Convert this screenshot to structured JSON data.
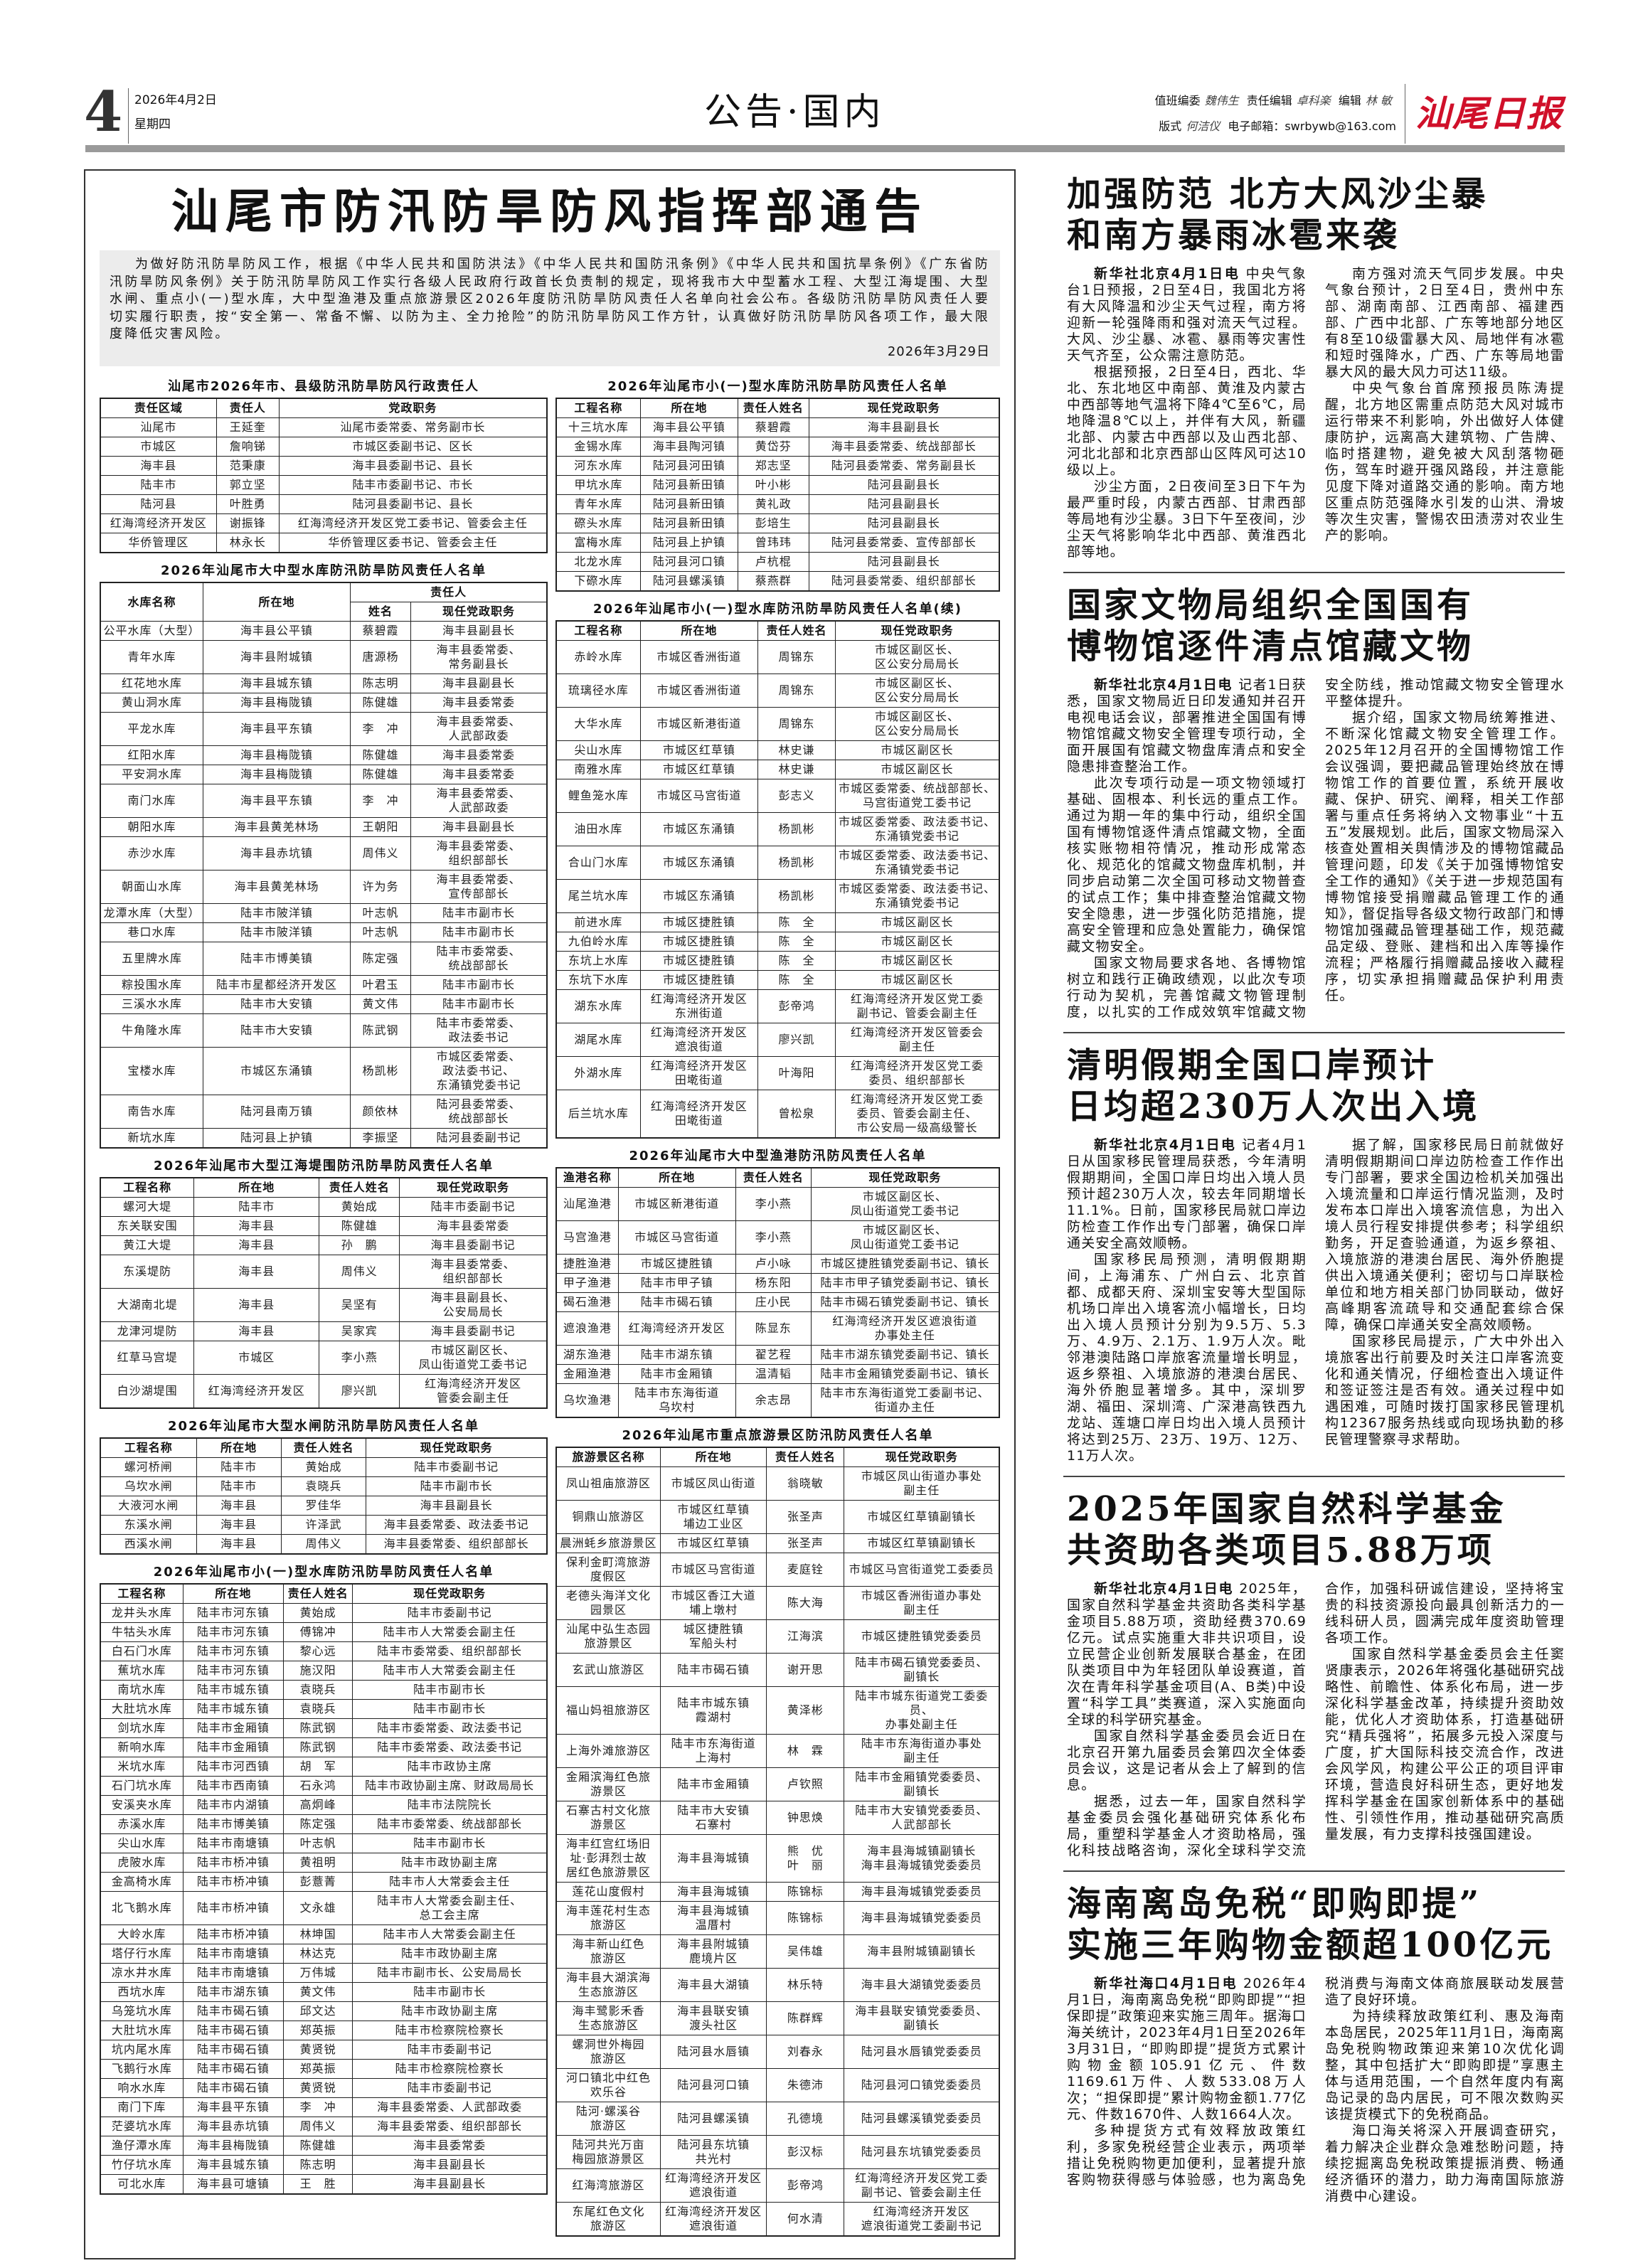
{
  "header": {
    "page_number": "4",
    "date": "2026年4月2日",
    "weekday": "星期四",
    "section": "公告·国内",
    "duty_editor_label": "值班编委",
    "duty_editor": "魏伟生",
    "chief_editor_label": "责任编辑",
    "chief_editor": "卓科楽",
    "editor_label": "编辑",
    "editor": "林 敏",
    "layout_label": "版式",
    "layout": "何洁仪",
    "email_label": "电子邮箱：",
    "email": "swrbywb@163.com",
    "logo": "汕尾日报",
    "logo_color": "#d0102a"
  },
  "notice": {
    "title": "汕尾市防汛防旱防风指挥部通告",
    "intro": "为做好防汛防旱防风工作，根据《中华人民共和国防洪法》《中华人民共和国防汛条例》《中华人民共和国抗旱条例》《广东省防汛防旱防风条例》关于防汛防旱防风工作实行各级人民政府行政首长负责制的规定，现将我市大中型蓄水工程、大型江海堤围、大型水闸、重点小(一)型水库，大中型渔港及重点旅游景区2026年度防汛防旱防风责任人名单向社会公布。各级防汛防旱防风责任人要切实履行职责，按“安全第一、常备不懈、以防为主、全力抢险”的防汛防旱防风工作方针，认真做好防汛防旱防风各项工作，最大限度降低灾害风险。",
    "date": "2026年3月29日"
  },
  "left_tables": [
    {
      "title": "汕尾市2026年市、县级防汛防旱防风行政责任人",
      "headers": [
        "责任区域",
        "责任人",
        "党政职务"
      ],
      "rows": [
        [
          "汕尾市",
          "王延奎",
          "汕尾市委常委、常务副市长"
        ],
        [
          "市城区",
          "詹响锑",
          "市城区委副书记、区长"
        ],
        [
          "海丰县",
          "范秉康",
          "海丰县委副书记、县长"
        ],
        [
          "陆丰市",
          "郭立坚",
          "陆丰市委副书记、市长"
        ],
        [
          "陆河县",
          "叶胜勇",
          "陆河县委副书记、县长"
        ],
        [
          "红海湾经济开发区",
          "谢振锋",
          "红海湾经济开发区党工委书记、管委会主任"
        ],
        [
          "华侨管理区",
          "林永长",
          "华侨管理区委书记、管委会主任"
        ]
      ]
    },
    {
      "title": "2026年汕尾市大中型水库防汛防旱防风责任人名单",
      "headers": [
        "水库名称",
        "所在地",
        "责任人",
        "姓名",
        "现任党政职务"
      ],
      "rows": [
        [
          "公平水库（大型）",
          "海丰县公平镇",
          "蔡碧霞",
          "海丰县副县长"
        ],
        [
          "青年水库",
          "海丰县附城镇",
          "唐源杨",
          "海丰县委常委、\n常务副县长"
        ],
        [
          "红花地水库",
          "海丰县城东镇",
          "陈志明",
          "海丰县副县长"
        ],
        [
          "黄山洞水库",
          "海丰县梅陇镇",
          "陈健雄",
          "海丰县委常委"
        ],
        [
          "平龙水库",
          "海丰县平东镇",
          "李　冲",
          "海丰县委常委、\n人武部政委"
        ],
        [
          "红阳水库",
          "海丰县梅陇镇",
          "陈健雄",
          "海丰县委常委"
        ],
        [
          "平安洞水库",
          "海丰县梅陇镇",
          "陈健雄",
          "海丰县委常委"
        ],
        [
          "南门水库",
          "海丰县平东镇",
          "李　冲",
          "海丰县委常委、\n人武部政委"
        ],
        [
          "朝阳水库",
          "海丰县黄羌林场",
          "王朝阳",
          "海丰县副县长"
        ],
        [
          "赤沙水库",
          "海丰县赤坑镇",
          "周伟义",
          "海丰县委常委、\n组织部部长"
        ],
        [
          "朝面山水库",
          "海丰县黄羌林场",
          "许为务",
          "海丰县委常委、\n宣传部部长"
        ],
        [
          "龙潭水库（大型）",
          "陆丰市陂洋镇",
          "叶志帆",
          "陆丰市副市长"
        ],
        [
          "巷口水库",
          "陆丰市陂洋镇",
          "叶志帆",
          "陆丰市副市长"
        ],
        [
          "五里牌水库",
          "陆丰市博美镇",
          "陈定强",
          "陆丰市委常委、\n统战部部长"
        ],
        [
          "粽投围水库",
          "陆丰市星都经济开发区",
          "叶君玉",
          "陆丰市副市长"
        ],
        [
          "三溪水水库",
          "陆丰市大安镇",
          "黄文伟",
          "陆丰市副市长"
        ],
        [
          "牛角隆水库",
          "陆丰市大安镇",
          "陈武钢",
          "陆丰市委常委、\n政法委书记"
        ],
        [
          "宝楼水库",
          "市城区东涌镇",
          "杨凯彬",
          "市城区委常委、\n政法委书记、\n东涌镇党委书记"
        ],
        [
          "南告水库",
          "陆河县南万镇",
          "颜依林",
          "陆河县委常委、\n统战部部长"
        ],
        [
          "新坑水库",
          "陆河县上护镇",
          "李振坚",
          "陆河县委副书记"
        ]
      ]
    },
    {
      "title": "2026年汕尾市大型江海堤围防汛防旱防风责任人名单",
      "headers": [
        "工程名称",
        "所在地",
        "责任人姓名",
        "现任党政职务"
      ],
      "rows": [
        [
          "螺河大堤",
          "陆丰市",
          "黄始成",
          "陆丰市委副书记"
        ],
        [
          "东关联安围",
          "海丰县",
          "陈健雄",
          "海丰县委常委"
        ],
        [
          "黄江大堤",
          "海丰县",
          "孙　鹏",
          "海丰县委副书记"
        ],
        [
          "东溪堤防",
          "海丰县",
          "周伟义",
          "海丰县委常委、\n组织部部长"
        ],
        [
          "大湖南北堤",
          "海丰县",
          "吴坚有",
          "海丰县副县长、\n公安局局长"
        ],
        [
          "龙津河堤防",
          "海丰县",
          "吴家宾",
          "海丰县委副书记"
        ],
        [
          "红草马宫堤",
          "市城区",
          "李小燕",
          "市城区副区长、\n凤山街道党工委书记"
        ],
        [
          "白沙湖堤围",
          "红海湾经济开发区",
          "廖兴凯",
          "红海湾经济开发区\n管委会副主任"
        ]
      ]
    },
    {
      "title": "2026年汕尾市大型水闸防汛防旱防风责任人名单",
      "headers": [
        "工程名称",
        "所在地",
        "责任人姓名",
        "现任党政职务"
      ],
      "rows": [
        [
          "螺河桥闸",
          "陆丰市",
          "黄始成",
          "陆丰市委副书记"
        ],
        [
          "乌坎水闸",
          "陆丰市",
          "袁晓兵",
          "陆丰市副市长"
        ],
        [
          "大液河水闸",
          "海丰县",
          "罗佳华",
          "海丰县副县长"
        ],
        [
          "东溪水闸",
          "海丰县",
          "许泽武",
          "海丰县委常委、政法委书记"
        ],
        [
          "西溪水闸",
          "海丰县",
          "周伟义",
          "海丰县委常委、组织部部长"
        ]
      ]
    },
    {
      "title": "2026年汕尾市小(一)型水库防汛防旱防风责任人名单",
      "headers": [
        "工程名称",
        "所在地",
        "责任人姓名",
        "现任党政职务"
      ],
      "rows": [
        [
          "龙井头水库",
          "陆丰市河东镇",
          "黄始成",
          "陆丰市委副书记"
        ],
        [
          "牛牯头水库",
          "陆丰市河东镇",
          "傅锦冲",
          "陆丰市人大常委会副主任"
        ],
        [
          "白石门水库",
          "陆丰市河东镇",
          "黎心远",
          "陆丰市委常委、组织部部长"
        ],
        [
          "蕉坑水库",
          "陆丰市河东镇",
          "施汉阳",
          "陆丰市人大常委会副主任"
        ],
        [
          "南坑水库",
          "陆丰市城东镇",
          "袁晓兵",
          "陆丰市副市长"
        ],
        [
          "大肚坑水库",
          "陆丰市城东镇",
          "袁晓兵",
          "陆丰市副市长"
        ],
        [
          "剑坑水库",
          "陆丰市金厢镇",
          "陈武钢",
          "陆丰市委常委、政法委书记"
        ],
        [
          "新响水库",
          "陆丰市金厢镇",
          "陈武钢",
          "陆丰市委常委、政法委书记"
        ],
        [
          "米坑水库",
          "陆丰市河西镇",
          "胡　军",
          "陆丰市政协主席"
        ],
        [
          "石门坑水库",
          "陆丰市西南镇",
          "石永鸿",
          "陆丰市政协副主席、财政局局长"
        ],
        [
          "安溪夹水库",
          "陆丰市内湖镇",
          "高炯峰",
          "陆丰市法院院长"
        ],
        [
          "赤溪水库",
          "陆丰市博美镇",
          "陈定强",
          "陆丰市委常委、统战部部长"
        ],
        [
          "尖山水库",
          "陆丰市南塘镇",
          "叶志帆",
          "陆丰市副市长"
        ],
        [
          "虎陂水库",
          "陆丰市桥冲镇",
          "黄祖明",
          "陆丰市政协副主席"
        ],
        [
          "金高椅水库",
          "陆丰市桥冲镇",
          "彭薏菁",
          "陆丰市人大常委会主任"
        ],
        [
          "北飞鹅水库",
          "陆丰市桥冲镇",
          "文永雄",
          "陆丰市人大常委会副主任、\n总工会主席"
        ],
        [
          "大岭水库",
          "陆丰市桥冲镇",
          "林坤国",
          "陆丰市人大常委会副主任"
        ],
        [
          "塔仔行水库",
          "陆丰市南塘镇",
          "林达克",
          "陆丰市政协副主席"
        ],
        [
          "凉水井水库",
          "陆丰市南塘镇",
          "万伟城",
          "陆丰市副市长、公安局局长"
        ],
        [
          "西坑水库",
          "陆丰市湖东镇",
          "黄文伟",
          "陆丰市副市长"
        ],
        [
          "乌笼坑水库",
          "陆丰市碣石镇",
          "邱文达",
          "陆丰市政协副主席"
        ],
        [
          "大肚坑水库",
          "陆丰市碣石镇",
          "郑英振",
          "陆丰市检察院检察长"
        ],
        [
          "坑内尾水库",
          "陆丰市碣石镇",
          "黄贤锐",
          "陆丰市委副书记"
        ],
        [
          "飞鹅行水库",
          "陆丰市碣石镇",
          "郑英振",
          "陆丰市检察院检察长"
        ],
        [
          "响水水库",
          "陆丰市碣石镇",
          "黄贤锐",
          "陆丰市委副书记"
        ],
        [
          "南门下库",
          "海丰县平东镇",
          "李　冲",
          "海丰县委常委、人武部政委"
        ],
        [
          "茫婆坑水库",
          "海丰县赤坑镇",
          "周伟义",
          "海丰县委常委、组织部部长"
        ],
        [
          "渔仔潭水库",
          "海丰县梅陇镇",
          "陈健雄",
          "海丰县委常委"
        ],
        [
          "竹仔坑水库",
          "海丰县城东镇",
          "陈志明",
          "海丰县副县长"
        ],
        [
          "可北水库",
          "海丰县可塘镇",
          "王　胜",
          "海丰县副县长"
        ]
      ]
    }
  ],
  "right_tables": [
    {
      "title": "2026年汕尾市小(一)型水库防汛防旱防风责任人名单",
      "headers": [
        "工程名称",
        "所在地",
        "责任人姓名",
        "现任党政职务"
      ],
      "rows": [
        [
          "十三坑水库",
          "海丰县公平镇",
          "蔡碧霞",
          "海丰县副县长"
        ],
        [
          "金锡水库",
          "海丰县陶河镇",
          "黄岱芬",
          "海丰县委常委、统战部部长"
        ],
        [
          "河东水库",
          "陆河县河田镇",
          "郑志坚",
          "陆河县委常委、常务副县长"
        ],
        [
          "甲坑水库",
          "陆河县新田镇",
          "叶小彬",
          "陆河县副县长"
        ],
        [
          "青年水库",
          "陆河县新田镇",
          "黄礼政",
          "陆河县副县长"
        ],
        [
          "磜头水库",
          "陆河县新田镇",
          "彭培生",
          "陆河县副县长"
        ],
        [
          "富梅水库",
          "陆河县上护镇",
          "曾玮玮",
          "陆河县委常委、宣传部部长"
        ],
        [
          "北龙水库",
          "陆河县河口镇",
          "卢杭棍",
          "陆河县副县长"
        ],
        [
          "下磜水库",
          "陆河县螺溪镇",
          "蔡燕群",
          "陆河县委常委、组织部部长"
        ]
      ]
    },
    {
      "title": "2026年汕尾市小(一)型水库防汛防旱防风责任人名单(续)",
      "headers": [
        "工程名称",
        "所在地",
        "责任人姓名",
        "现任党政职务"
      ],
      "rows": [
        [
          "赤岭水库",
          "市城区香洲街道",
          "周锦东",
          "市城区副区长、\n区公安分局局长"
        ],
        [
          "琉璃径水库",
          "市城区香洲街道",
          "周锦东",
          "市城区副区长、\n区公安分局局长"
        ],
        [
          "大华水库",
          "市城区新港街道",
          "周锦东",
          "市城区副区长、\n区公安分局局长"
        ],
        [
          "尖山水库",
          "市城区红草镇",
          "林史谦",
          "市城区副区长"
        ],
        [
          "南雅水库",
          "市城区红草镇",
          "林史谦",
          "市城区副区长"
        ],
        [
          "鲤鱼笼水库",
          "市城区马宫街道",
          "彭志义",
          "市城区委常委、统战部部长、\n马宫街道党工委书记"
        ],
        [
          "油田水库",
          "市城区东涌镇",
          "杨凯彬",
          "市城区委常委、政法委书记、\n东涌镇党委书记"
        ],
        [
          "合山门水库",
          "市城区东涌镇",
          "杨凯彬",
          "市城区委常委、政法委书记、\n东涌镇党委书记"
        ],
        [
          "尾兰坑水库",
          "市城区东涌镇",
          "杨凯彬",
          "市城区委常委、政法委书记、\n东涌镇党委书记"
        ],
        [
          "前进水库",
          "市城区捷胜镇",
          "陈　全",
          "市城区副区长"
        ],
        [
          "九伯岭水库",
          "市城区捷胜镇",
          "陈　全",
          "市城区副区长"
        ],
        [
          "东坑上水库",
          "市城区捷胜镇",
          "陈　全",
          "市城区副区长"
        ],
        [
          "东坑下水库",
          "市城区捷胜镇",
          "陈　全",
          "市城区副区长"
        ],
        [
          "湖东水库",
          "红海湾经济开发区\n东洲街道",
          "彭帝鸿",
          "红海湾经济开发区党工委\n副书记、管委会副主任"
        ],
        [
          "湖尾水库",
          "红海湾经济开发区\n遮浪街道",
          "廖兴凯",
          "红海湾经济开发区管委会\n副主任"
        ],
        [
          "外湖水库",
          "红海湾经济开发区\n田墘街道",
          "叶海阳",
          "红海湾经济开发区党工委\n委员、组织部部长"
        ],
        [
          "后兰坑水库",
          "红海湾经济开发区\n田墘街道",
          "曾松泉",
          "红海湾经济开发区党工委\n委员、管委会副主任、\n市公安局一级高级警长"
        ]
      ]
    },
    {
      "title": "2026年汕尾市大中型渔港防汛防风责任人名单",
      "headers": [
        "渔港名称",
        "所在地",
        "责任人姓名",
        "现任党政职务"
      ],
      "rows": [
        [
          "汕尾渔港",
          "市城区新港街道",
          "李小燕",
          "市城区副区长、\n凤山街道党工委书记"
        ],
        [
          "马宫渔港",
          "市城区马宫街道",
          "李小燕",
          "市城区副区长、\n凤山街道党工委书记"
        ],
        [
          "捷胜渔港",
          "市城区捷胜镇",
          "卢小咏",
          "市城区捷胜镇党委副书记、镇长"
        ],
        [
          "甲子渔港",
          "陆丰市甲子镇",
          "杨东阳",
          "陆丰市甲子镇党委副书记、镇长"
        ],
        [
          "碣石渔港",
          "陆丰市碣石镇",
          "庄小民",
          "陆丰市碣石镇党委副书记、镇长"
        ],
        [
          "遮浪渔港",
          "红海湾经济开发区",
          "陈显东",
          "红海湾经济开发区遮浪街道\n办事处主任"
        ],
        [
          "湖东渔港",
          "陆丰市湖东镇",
          "翟艺程",
          "陆丰市湖东镇党委副书记、镇长"
        ],
        [
          "金厢渔港",
          "陆丰市金厢镇",
          "温清韬",
          "陆丰市金厢镇党委副书记、镇长"
        ],
        [
          "乌坎渔港",
          "陆丰市东海街道\n乌坎村",
          "余志昂",
          "陆丰市东海街道党工委副书记、\n街道办主任"
        ]
      ]
    },
    {
      "title": "2026年汕尾市重点旅游景区防汛防风责任人名单",
      "headers": [
        "旅游景区名称",
        "所在地",
        "责任人姓名",
        "现任党政职务"
      ],
      "rows": [
        [
          "凤山祖庙旅游区",
          "市城区凤山街道",
          "翁晓敏",
          "市城区凤山街道办事处\n副主任"
        ],
        [
          "铜鼎山旅游区",
          "市城区红草镇\n埔边工业区",
          "张圣声",
          "市城区红草镇副镇长"
        ],
        [
          "晨洲蚝乡旅游景区",
          "市城区红草镇",
          "张圣声",
          "市城区红草镇副镇长"
        ],
        [
          "保利金町湾旅游\n度假区",
          "市城区马宫街道",
          "麦庭铨",
          "市城区马宫街道党工委委员"
        ],
        [
          "老德头海洋文化\n园景区",
          "市城区香江大道\n埔上墩村",
          "陈大海",
          "市城区香洲街道办事处\n副主任"
        ],
        [
          "汕尾中弘生态园\n旅游景区",
          "城区捷胜镇\n军船头村",
          "江海滨",
          "市城区捷胜镇党委委员"
        ],
        [
          "玄武山旅游区",
          "陆丰市碣石镇",
          "谢开思",
          "陆丰市碣石镇党委委员、\n副镇长"
        ],
        [
          "福山妈祖旅游区",
          "陆丰市城东镇\n霞湖村",
          "黄泽彬",
          "陆丰市城东街道党工委委员、\n办事处副主任"
        ],
        [
          "上海外滩旅游区",
          "陆丰市东海街道\n上海村",
          "林　霖",
          "陆丰市东海街道办事处\n副主任"
        ],
        [
          "金厢滨海红色旅\n游景区",
          "陆丰市金厢镇",
          "卢钦照",
          "陆丰市金厢镇党委委员、\n副镇长"
        ],
        [
          "石寨古村文化旅\n游景区",
          "陆丰市大安镇\n石寨村",
          "钟思焕",
          "陆丰市大安镇党委委员、\n人武部部长"
        ],
        [
          "海丰红宫红场旧\n址·彭湃烈士故\n居红色旅游景区",
          "海丰县海城镇",
          "熊　优\n叶　丽",
          "海丰县海城镇副镇长\n海丰县海城镇党委委员"
        ],
        [
          "莲花山度假村",
          "海丰县海城镇",
          "陈锦标",
          "海丰县海城镇党委委员"
        ],
        [
          "海丰莲花村生态\n旅游区",
          "海丰县海城镇\n温厝村",
          "陈锦标",
          "海丰县海城镇党委委员"
        ],
        [
          "海丰新山红色\n旅游区",
          "海丰县附城镇\n鹿境片区",
          "吴伟雄",
          "海丰县附城镇副镇长"
        ],
        [
          "海丰县大湖滨海\n生态旅游区",
          "海丰县大湖镇",
          "林乐特",
          "海丰县大湖镇党委委员"
        ],
        [
          "海丰鹭影禾香\n生态旅游区",
          "海丰县联安镇\n渡头社区",
          "陈群辉",
          "海丰县联安镇党委委员、\n副镇长"
        ],
        [
          "螺洞世外梅园\n旅游区",
          "陆河县水唇镇",
          "刘春永",
          "陆河县水唇镇党委委员"
        ],
        [
          "河口镇北中红色\n欢乐谷",
          "陆河县河口镇",
          "朱德沛",
          "陆河县河口镇党委委员"
        ],
        [
          "陆河·螺溪谷\n旅游区",
          "陆河县螺溪镇",
          "孔德境",
          "陆河县螺溪镇党委委员"
        ],
        [
          "陆河共光万亩\n梅园旅游景区",
          "陆河县东坑镇\n共光村",
          "彭汉标",
          "陆河县东坑镇党委委员"
        ],
        [
          "红海湾旅游区",
          "红海湾经济开发区\n遮浪街道",
          "彭帝鸿",
          "红海湾经济开发区党工委\n副书记、管委会副主任"
        ],
        [
          "东尾红色文化\n旅游区",
          "红海湾经济开发区\n遮浪街道",
          "何水清",
          "红海湾经济开发区\n遮浪街道党工委副书记"
        ]
      ]
    }
  ],
  "articles": [
    {
      "headline": "加强防范  北方大风沙尘暴\n和南方暴雨冰雹来袭",
      "dateline": "新华社北京4月1日电",
      "paragraphs": [
        "中央气象台1日预报，2日至4日，我国北方将有大风降温和沙尘天气过程，南方将迎新一轮强降雨和强对流天气过程。大风、沙尘暴、冰雹、暴雨等灾害性天气齐至，公众需注意防范。",
        "根据预报，2日至4日，西北、华北、东北地区中南部、黄淮及内蒙古中西部等地气温将下降4℃至6℃，局地降温8℃以上，并伴有大风，新疆北部、内蒙古中西部以及山西北部、河北北部和北京西部山区阵风可达10级以上。",
        "沙尘方面，2日夜间至3日下午为最严重时段，内蒙古西部、甘肃西部等局地有沙尘暴。3日下午至夜间，沙尘天气将影响华北中西部、黄淮西北部等地。",
        "南方强对流天气同步发展。中央气象台预计，2日至4日，贵州中东部、湖南南部、江西南部、福建西部、广西中北部、广东等地部分地区有8至10级雷暴大风、局地伴有冰雹和短时强降水，广西、广东等局地雷暴大风的最大风力可达11级。",
        "中央气象台首席预报员陈涛提醒，北方地区需重点防范大风对城市运行带来不利影响，外出做好人体健康防护，远离高大建筑物、广告牌、临时搭建物，避免被大风刮落物砸伤，驾车时避开强风路段，并注意能见度下降对道路交通的影响。南方地区重点防范强降水引发的山洪、滑坡等次生灾害，警惕农田渍涝对农业生产的影响。"
      ]
    },
    {
      "headline": "国家文物局组织全国国有\n博物馆逐件清点馆藏文物",
      "dateline": "新华社北京4月1日电",
      "paragraphs": [
        "记者1日获悉，国家文物局近日印发通知并召开电视电话会议，部署推进全国国有博物馆馆藏文物安全管理专项行动，全面开展国有馆藏文物盘库清点和安全隐患排查整治工作。",
        "此次专项行动是一项文物领域打基础、固根本、利长远的重点工作。通过为期一年的集中行动，组织全国国有博物馆逐件清点馆藏文物，全面核实账物相符情况，推动形成常态化、规范化的馆藏文物盘库机制，并同步启动第二次全国可移动文物普查的试点工作；集中排查整治馆藏文物安全隐患，进一步强化防范措施，提高安全管理和应急处置能力，确保馆藏文物安全。",
        "国家文物局要求各地、各博物馆树立和践行正确政绩观，以此次专项行动为契机，完善馆藏文物管理制度，以扎实的工作成效筑牢馆藏文物安全防线，推动馆藏文物安全管理水平整体提升。",
        "据介绍，国家文物局统筹推进、不断深化馆藏文物安全管理工作。2025年12月召开的全国博物馆工作会议强调，要把藏品管理始终放在博物馆工作的首要位置，系统开展收藏、保护、研究、阐释，相关工作部署与重点任务将纳入文物事业“十五五”发展规划。此后，国家文物局深入核查处置相关舆情涉及的博物馆藏品管理问题，印发《关于加强博物馆安全工作的通知》《关于进一步规范国有博物馆接受捐赠藏品管理工作的通知》，督促指导各级文物行政部门和博物馆加强藏品管理基础工作，规范藏品定级、登账、建档和出入库等操作流程；严格履行捐赠藏品接收入藏程序，切实承担捐赠藏品保护利用责任。"
      ]
    },
    {
      "headline": "清明假期全国口岸预计\n日均超230万人次出入境",
      "dateline": "新华社北京4月1日电",
      "paragraphs": [
        "记者4月1日从国家移民管理局获悉，今年清明假期期间，全国口岸日均出入境人员预计超230万人次，较去年同期增长11.1%。日前，国家移民局就口岸边防检查工作作出专门部署，确保口岸通关安全高效顺畅。",
        "国家移民局预测，清明假期期间，上海浦东、广州白云、北京首都、成都天府、深圳宝安等大型国际机场口岸出入境客流小幅增长，日均出入境人员预计分别为9.5万、5.3万、4.9万、2.1万、1.9万人次。毗邻港澳陆路口岸旅客流量增长明显，返乡祭祖、入境旅游的港澳台居民、海外侨胞显著增多。其中，深圳罗湖、福田、深圳湾、广深港高铁西九龙站、莲塘口岸日均出入境人员预计将达到25万、23万、19万、12万、11万人次。",
        "据了解，国家移民局日前就做好清明假期期间口岸边防检查工作作出专门部署，要求全国边检机关加强出入境流量和口岸运行情况监测，及时发布本口岸出入境客流信息，为出入境人员行程安排提供参考；科学组织勤务，开足查验通道，为返乡祭祖、入境旅游的港澳台居民、海外侨胞提供出入境通关便利；密切与口岸联检单位和地方相关部门协同联动，做好高峰期客流疏导和交通配套综合保障，确保口岸通关安全高效顺畅。",
        "国家移民局提示，广大中外出入境旅客出行前要及时关注口岸客流变化和通关情况，仔细检查出入境证件和签证签注是否有效。通关过程中如遇困难，可随时拨打国家移民管理机构12367服务热线或向现场执勤的移民管理警察寻求帮助。"
      ]
    },
    {
      "headline": "2025年国家自然科学基金\n共资助各类项目5.88万项",
      "dateline": "新华社北京4月1日电",
      "paragraphs": [
        "2025年，国家自然科学基金共资助各类科学基金项目5.88万项，资助经费370.69亿元。试点实施重大非共识项目，设立民营企业创新发展联合基金，在团队类项目中为年轻团队单设赛道，首次在青年科学基金项目(A、B类)中设置“科学工具”类赛道，深入实施面向全球的科学研究基金。",
        "国家自然科学基金委员会近日在北京召开第九届委员会第四次全体委员会议，这是记者从会上了解到的信息。",
        "据悉，过去一年，国家自然科学基金委员会强化基础研究体系化布局，重塑科学基金人才资助格局，强化科技战略咨询，深化全球科学交流合作，加强科研诚信建设，坚持将宝贵的科技资源投向最具创新活力的一线科研人员，圆满完成年度资助管理各项工作。",
        "国家自然科学基金委员会主任窦贤康表示，2026年将强化基础研究战略性、前瞻性、体系化布局，进一步深化科学基金改革，持续提升资助效能，优化人才资助体系，打造基础研究“精兵强将”，拓展多元投入深度与广度，扩大国际科技交流合作，改进会风学风，构建公平公正的项目评审环境，营造良好科研生态，更好地发挥科学基金在国家创新体系中的基础性、引领性作用，推动基础研究高质量发展，有力支撑科技强国建设。"
      ]
    },
    {
      "headline": "海南离岛免税“即购即提”\n实施三年购物金额超100亿元",
      "dateline": "新华社海口4月1日电",
      "paragraphs": [
        "2026年4月1日，海南离岛免税“即购即提”“担保即提”政策迎来实施三周年。据海口海关统计，2023年4月1日至2026年3月31日，“即购即提”提货方式累计购物金额105.91亿元、件数1169.61万件、人数533.08万人次；“担保即提”累计购物金额1.77亿元、件数1670件、人数1664人次。",
        "多种提货方式有效释放政策红利，多家免税经营企业表示，两项举措让免税购物更加便利，显著提升旅客购物获得感与体验感，也为离岛免税消费与海南文体商旅展联动发展营造了良好环境。",
        "为持续释放政策红利、惠及海南本岛居民，2025年11月1日，海南离岛免税购物政策迎来第10次优化调整，其中包括扩大“即购即提”享惠主体与适用范围，一个自然年度内有离岛记录的岛内居民，可不限次数购买该提货模式下的免税商品。",
        "海口海关将深入开展调查研究，着力解决企业群众急难愁盼问题，持续挖掘离岛免税政策提振消费、畅通经济循环的潜力，助力海南国际旅游消费中心建设。"
      ]
    }
  ]
}
